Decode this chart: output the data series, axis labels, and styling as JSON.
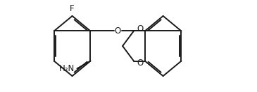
{
  "background_color": "#ffffff",
  "line_color": "#1a1a1a",
  "line_width": 1.4,
  "text_color": "#1a1a1a",
  "font_size": 8.5,
  "figsize": [
    3.65,
    1.32
  ],
  "dpi": 100,
  "F_label": "F",
  "O_label": "O",
  "O2_label": "O",
  "O3_label": "O",
  "NH2_label": "H₂N"
}
